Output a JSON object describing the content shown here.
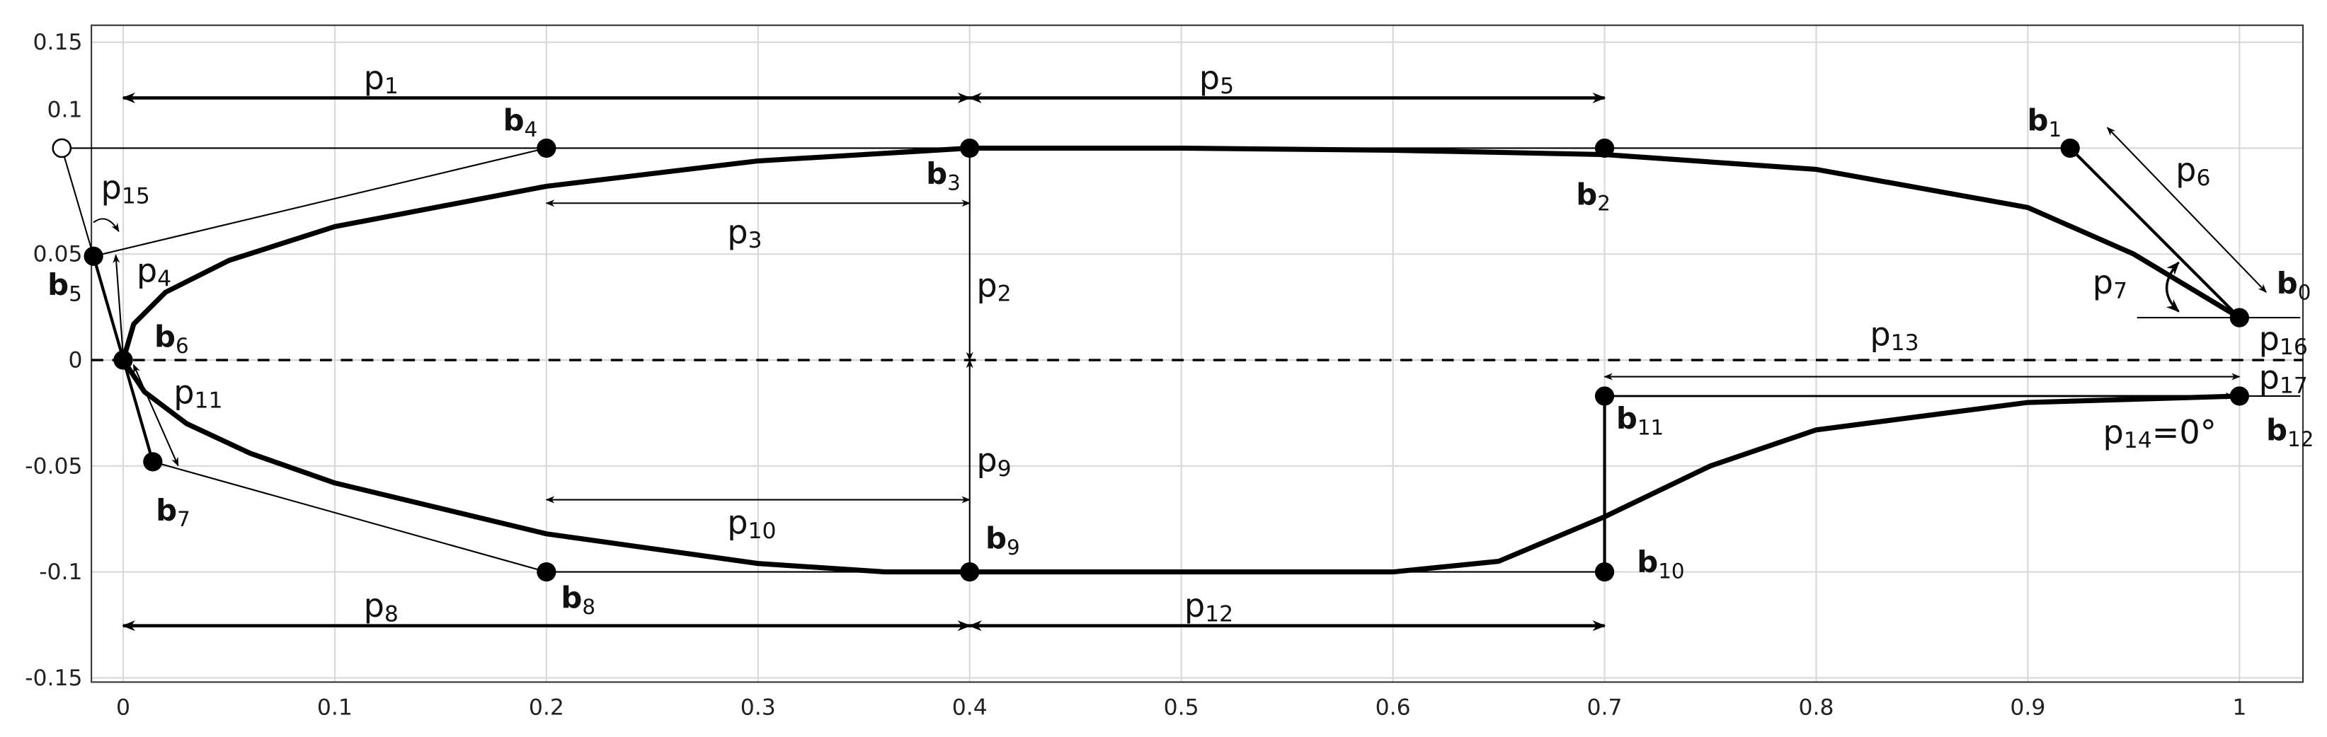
{
  "chart_data": {
    "type": "line",
    "xlim": [
      -0.015,
      1.03
    ],
    "ylim": [
      -0.152,
      0.158
    ],
    "xticks": [
      0,
      0.1,
      0.2,
      0.3,
      0.4,
      0.5,
      0.6,
      0.7,
      0.8,
      0.9,
      1
    ],
    "yticks": [
      -0.15,
      -0.1,
      -0.05,
      0,
      0.05,
      0.1,
      0.15
    ],
    "grid": true,
    "series": [
      {
        "color": "#000000",
        "x": [
          0,
          0.005,
          0.02,
          0.05,
          0.1,
          0.2,
          0.3,
          0.4,
          0.5,
          0.6,
          0.7,
          0.8,
          0.9,
          0.95,
          1
        ],
        "y": [
          0,
          0.017,
          0.032,
          0.047,
          0.063,
          0.082,
          0.094,
          0.1,
          0.1,
          0.099,
          0.097,
          0.09,
          0.072,
          0.05,
          0.02
        ]
      },
      {
        "color": "#000000",
        "x": [
          0,
          0.01,
          0.03,
          0.06,
          0.1,
          0.2,
          0.3,
          0.36,
          0.4,
          0.5,
          0.6,
          0.65,
          0.7,
          0.75,
          0.8,
          0.9,
          1
        ],
        "y": [
          0,
          -0.015,
          -0.03,
          -0.044,
          -0.058,
          -0.082,
          -0.096,
          -0.1,
          -0.1,
          -0.1,
          -0.1,
          -0.095,
          -0.074,
          -0.05,
          -0.033,
          -0.02,
          -0.017
        ]
      }
    ],
    "points": [
      {
        "label": "b",
        "sub": "0",
        "x": 1,
        "y": 0.02
      },
      {
        "label": "b",
        "sub": "1",
        "x": 0.92,
        "y": 0.1
      },
      {
        "label": "b",
        "sub": "2",
        "x": 0.7,
        "y": 0.1
      },
      {
        "label": "b",
        "sub": "3",
        "x": 0.4,
        "y": 0.1
      },
      {
        "label": "b",
        "sub": "4",
        "x": 0.2,
        "y": 0.1
      },
      {
        "label": "b",
        "sub": "5",
        "x": -0.014,
        "y": 0.049
      },
      {
        "label": "b",
        "sub": "6",
        "x": 0,
        "y": 0
      },
      {
        "label": "b",
        "sub": "7",
        "x": 0.014,
        "y": -0.048
      },
      {
        "label": "b",
        "sub": "8",
        "x": 0.2,
        "y": -0.1
      },
      {
        "label": "b",
        "sub": "9",
        "x": 0.4,
        "y": -0.1
      },
      {
        "label": "b",
        "sub": "10",
        "x": 0.7,
        "y": -0.1
      },
      {
        "label": "b",
        "sub": "11",
        "x": 0.7,
        "y": -0.017
      },
      {
        "label": "b",
        "sub": "12",
        "x": 1,
        "y": -0.017
      }
    ],
    "open_point": {
      "x": -0.029,
      "y": 0.1
    },
    "annotations": [
      {
        "text": "p",
        "sub": "1"
      },
      {
        "text": "p",
        "sub": "2"
      },
      {
        "text": "p",
        "sub": "3"
      },
      {
        "text": "p",
        "sub": "4"
      },
      {
        "text": "p",
        "sub": "5"
      },
      {
        "text": "p",
        "sub": "6"
      },
      {
        "text": "p",
        "sub": "7"
      },
      {
        "text": "p",
        "sub": "8"
      },
      {
        "text": "p",
        "sub": "9"
      },
      {
        "text": "p",
        "sub": "10"
      },
      {
        "text": "p",
        "sub": "11"
      },
      {
        "text": "p",
        "sub": "12"
      },
      {
        "text": "p",
        "sub": "13"
      },
      {
        "text": "p",
        "sub": "14",
        "suffix": "=0°"
      },
      {
        "text": "p",
        "sub": "15"
      },
      {
        "text": "p",
        "sub": "16"
      },
      {
        "text": "p",
        "sub": "17"
      }
    ]
  }
}
